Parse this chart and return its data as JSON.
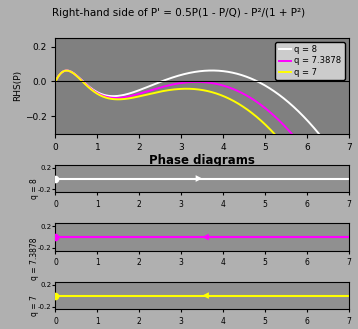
{
  "title": "Right-hand side of P' = 0.5P(1 - P/Q) - P²/(1 + P²)",
  "xlabel": "Phase diagrams",
  "ylabel": "RHS(P)",
  "fig_bg": "#b0b0b0",
  "panel_bg": "#808080",
  "phase_bg": "#909090",
  "xlim": [
    0,
    7
  ],
  "ylim": [
    -0.3,
    0.25
  ],
  "q_values": [
    8,
    7.3878,
    7
  ],
  "colors": [
    "white",
    "magenta",
    "yellow"
  ],
  "legend_labels": [
    "q = 8",
    "q = 7.3878",
    "q = 7"
  ],
  "phase_ylim": [
    -0.25,
    0.25
  ],
  "yticks": [
    0.2,
    -0.2
  ]
}
